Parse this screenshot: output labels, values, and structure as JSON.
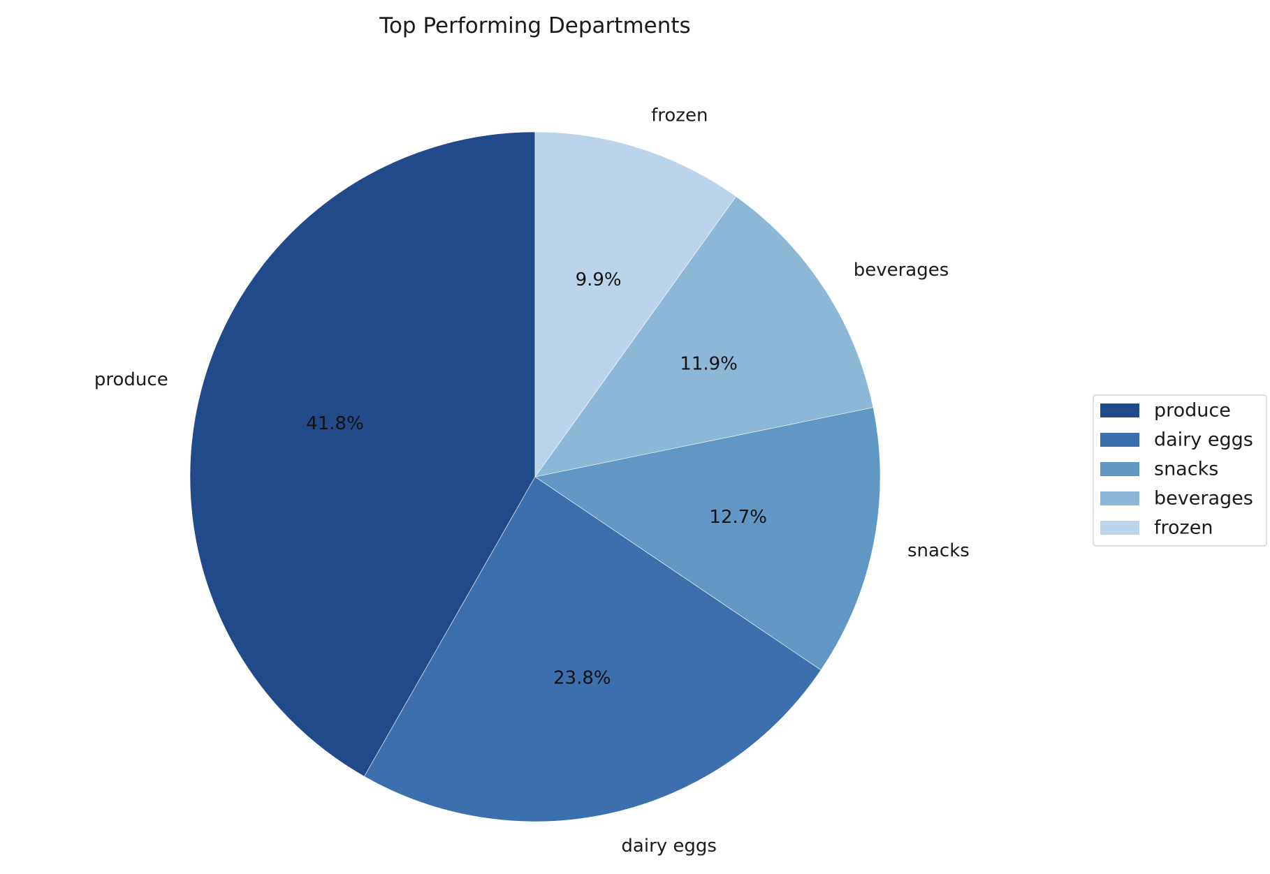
{
  "chart_data": {
    "type": "pie",
    "title": "Top Performing Departments",
    "start_angle_deg": 90,
    "direction": "counterclockwise",
    "legend_position": "right",
    "slices": [
      {
        "label": "produce",
        "value": 41.8,
        "pct_label": "41.8%",
        "color": "#214a8a"
      },
      {
        "label": "dairy eggs",
        "value": 23.8,
        "pct_label": "23.8%",
        "color": "#3b6fae"
      },
      {
        "label": "snacks",
        "value": 12.7,
        "pct_label": "12.7%",
        "color": "#6097c5"
      },
      {
        "label": "beverages",
        "value": 11.9,
        "pct_label": "11.9%",
        "color": "#8cb7d7"
      },
      {
        "label": "frozen",
        "value": 9.9,
        "pct_label": "9.9%",
        "color": "#bcd4e9"
      }
    ]
  }
}
